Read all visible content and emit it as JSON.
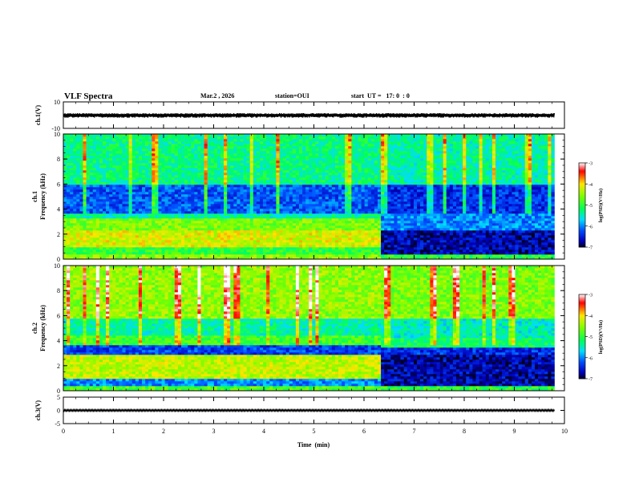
{
  "header": {
    "title": "VLF Spectra",
    "date": "Mar.2 , 2026",
    "station": "station=OUI",
    "start": "start  UT =   17: 0  : 0"
  },
  "chart_data": [
    {
      "type": "line",
      "id": "waveform-ch1",
      "ylabel": "ch.1(V)",
      "ylim": [
        -10,
        10
      ],
      "yticks": [
        10,
        -10
      ],
      "xlim": [
        0,
        10
      ],
      "signal_extent_min": [
        0,
        9.8
      ],
      "signal_band_V": [
        -2,
        1.5
      ],
      "color": "#000000"
    },
    {
      "type": "heatmap",
      "id": "spectrogram-ch1",
      "ylabel": "ch.1\nFrequency (kHz)",
      "ylabel_line1": "ch.1",
      "ylabel_line2": "Frequency (kHz)",
      "ylim": [
        0,
        10
      ],
      "yticks": [
        0,
        2,
        4,
        6,
        8,
        10
      ],
      "xlim": [
        0,
        10
      ],
      "data_extent_min": [
        0,
        9.8
      ],
      "change_time_min": 6.3,
      "colorbar": {
        "label": "log(PSD)(V²/Hz)",
        "range": [
          -7,
          -3
        ],
        "ticks": [
          -3,
          -4,
          -5,
          -6,
          -7
        ],
        "colors": [
          "#ffffff",
          "#ff0000",
          "#ffff00",
          "#00ff00",
          "#00ffff",
          "#0000ff",
          "#000020"
        ]
      },
      "bands_before_6_3": [
        {
          "f": [
            0,
            0.3
          ],
          "level": -4.5
        },
        {
          "f": [
            0.3,
            1.0
          ],
          "level": -5.0
        },
        {
          "f": [
            1.0,
            2.3
          ],
          "level": -4.2
        },
        {
          "f": [
            2.3,
            3.3
          ],
          "level": -4.6
        },
        {
          "f": [
            3.3,
            3.7
          ],
          "level": -5.4
        },
        {
          "f": [
            3.7,
            6.0
          ],
          "level": -6.2
        },
        {
          "f": [
            6.0,
            10.0
          ],
          "level": -5.3
        }
      ],
      "bands_after_6_3": [
        {
          "f": [
            0,
            0.3
          ],
          "level": -5.0
        },
        {
          "f": [
            0.3,
            2.3
          ],
          "level": -6.7
        },
        {
          "f": [
            2.3,
            3.6
          ],
          "level": -6.0
        },
        {
          "f": [
            3.6,
            6.0
          ],
          "level": -6.4
        },
        {
          "f": [
            6.0,
            10.0
          ],
          "level": -5.4
        }
      ]
    },
    {
      "type": "heatmap",
      "id": "spectrogram-ch2",
      "ylabel": "ch.2\nFrequency (kHz)",
      "ylabel_line1": "ch.2",
      "ylabel_line2": "Frequency (kHz)",
      "ylim": [
        0,
        10
      ],
      "yticks": [
        0,
        2,
        4,
        6,
        8,
        10
      ],
      "xlim": [
        0,
        10
      ],
      "data_extent_min": [
        0,
        9.8
      ],
      "change_time_min": 6.3,
      "colorbar": {
        "label": "log(PSD)(V²/Hz)",
        "range": [
          -7,
          -3
        ],
        "ticks": [
          -3,
          -4,
          -5,
          -6,
          -7
        ],
        "colors": [
          "#ffffff",
          "#ff0000",
          "#ffff00",
          "#00ff00",
          "#00ffff",
          "#0000ff",
          "#000020"
        ]
      },
      "bands_before_6_3": [
        {
          "f": [
            0,
            0.4
          ],
          "level": -4.8
        },
        {
          "f": [
            0.4,
            1.0
          ],
          "level": -6.0
        },
        {
          "f": [
            1.0,
            2.8
          ],
          "level": -4.3
        },
        {
          "f": [
            2.8,
            3.6
          ],
          "level": -6.3
        },
        {
          "f": [
            3.6,
            4.4
          ],
          "level": -4.9
        },
        {
          "f": [
            4.4,
            5.8
          ],
          "level": -5.4
        },
        {
          "f": [
            5.8,
            10.0
          ],
          "level": -4.5
        }
      ],
      "bands_after_6_3": [
        {
          "f": [
            0,
            0.4
          ],
          "level": -5.0
        },
        {
          "f": [
            0.4,
            2.8
          ],
          "level": -6.7
        },
        {
          "f": [
            2.8,
            3.4
          ],
          "level": -6.4
        },
        {
          "f": [
            3.4,
            4.2
          ],
          "level": -5.2
        },
        {
          "f": [
            4.2,
            5.8
          ],
          "level": -5.5
        },
        {
          "f": [
            5.8,
            10.0
          ],
          "level": -4.6
        }
      ]
    },
    {
      "type": "line",
      "id": "waveform-ch3",
      "ylabel": "ch.3(V)",
      "ylim": [
        -5,
        5
      ],
      "yticks": [
        5,
        0,
        -5
      ],
      "xlim": [
        0,
        10
      ],
      "signal_extent_min": [
        0,
        9.8
      ],
      "signal_band_V": [
        -0.5,
        0.5
      ],
      "color": "#000000"
    }
  ],
  "xaxis": {
    "label": "Time  (min)",
    "ticks": [
      0,
      1,
      2,
      3,
      4,
      5,
      6,
      7,
      8,
      9,
      10
    ]
  }
}
